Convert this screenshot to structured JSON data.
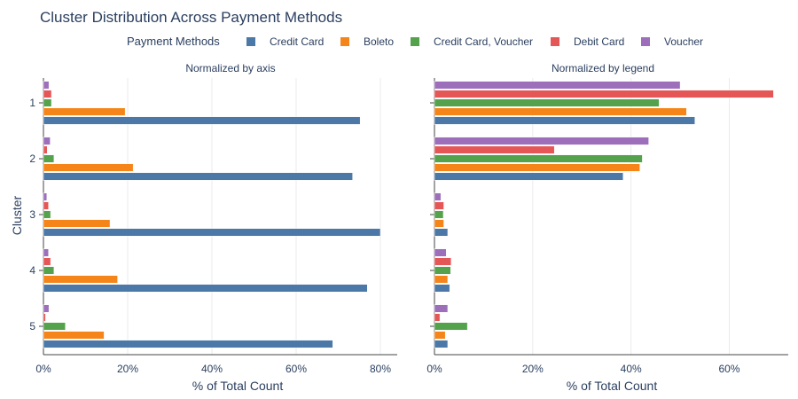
{
  "chart": {
    "title": "Cluster Distribution Across Payment Methods",
    "legend_title": "Payment Methods",
    "y_axis_title": "Cluster",
    "x_axis_title": "% of Total Count"
  },
  "chart_data": [
    {
      "type": "bar",
      "orientation": "horizontal",
      "title": "Normalized by axis",
      "xlabel": "% of Total Count",
      "ylabel": "Cluster",
      "xlim": [
        0,
        84
      ],
      "xticks": [
        "0%",
        "20%",
        "40%",
        "60%",
        "80%"
      ],
      "xtick_values": [
        0,
        20,
        40,
        60,
        80
      ],
      "categories": [
        "1",
        "2",
        "3",
        "4",
        "5"
      ],
      "series": [
        {
          "name": "Credit Card",
          "color": "#4c78a8",
          "values": [
            75.2,
            73.4,
            80.0,
            76.9,
            68.7
          ]
        },
        {
          "name": "Boleto",
          "color": "#f58518",
          "values": [
            19.4,
            21.3,
            15.8,
            17.6,
            14.4
          ]
        },
        {
          "name": "Credit Card, Voucher",
          "color": "#54a24b",
          "values": [
            1.9,
            2.5,
            1.7,
            2.5,
            5.2
          ]
        },
        {
          "name": "Debit Card",
          "color": "#e45756",
          "values": [
            1.9,
            0.9,
            1.2,
            1.7,
            0.5
          ]
        },
        {
          "name": "Voucher",
          "color": "#9d6fbb",
          "values": [
            1.3,
            1.6,
            0.8,
            1.2,
            1.3
          ]
        }
      ],
      "legend": "top",
      "grid": true
    },
    {
      "type": "bar",
      "orientation": "horizontal",
      "title": "Normalized by legend",
      "xlabel": "% of Total Count",
      "xlim": [
        0,
        72
      ],
      "xticks": [
        "0%",
        "20%",
        "40%",
        "60%"
      ],
      "xtick_values": [
        0,
        20,
        40,
        60
      ],
      "categories": [
        "1",
        "2",
        "3",
        "4",
        "5"
      ],
      "series": [
        {
          "name": "Credit Card",
          "color": "#4c78a8",
          "values": [
            53.0,
            38.4,
            2.7,
            3.1,
            2.7
          ]
        },
        {
          "name": "Boleto",
          "color": "#f58518",
          "values": [
            51.3,
            41.8,
            1.9,
            2.7,
            2.2
          ]
        },
        {
          "name": "Credit Card, Voucher",
          "color": "#54a24b",
          "values": [
            45.7,
            42.3,
            1.8,
            3.3,
            6.7
          ]
        },
        {
          "name": "Debit Card",
          "color": "#e45756",
          "values": [
            69.0,
            24.4,
            1.9,
            3.4,
            1.1
          ]
        },
        {
          "name": "Voucher",
          "color": "#9d6fbb",
          "values": [
            50.0,
            43.6,
            1.3,
            2.4,
            2.7
          ]
        }
      ],
      "grid": true
    }
  ]
}
